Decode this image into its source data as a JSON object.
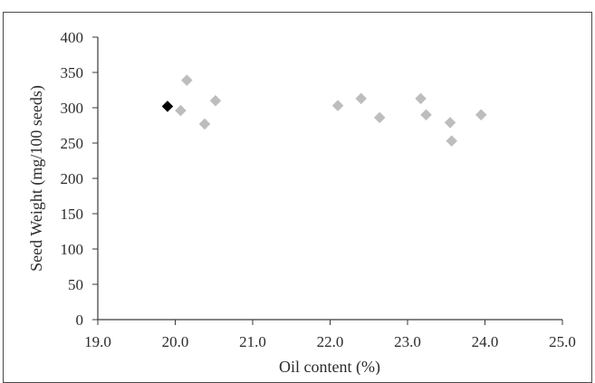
{
  "chart_data": {
    "type": "scatter",
    "title": "",
    "xlabel": "Oil content (%)",
    "ylabel": "Seed Weight (mg/100 seeds)",
    "xlim": [
      19.0,
      25.0
    ],
    "ylim": [
      0,
      400
    ],
    "xticks": [
      "19.0",
      "20.0",
      "21.0",
      "22.0",
      "23.0",
      "24.0",
      "25.0"
    ],
    "yticks": [
      "0",
      "50",
      "100",
      "150",
      "200",
      "250",
      "300",
      "350",
      "400"
    ],
    "grid": false,
    "legend": "none",
    "series": [
      {
        "color": "#bdbdbd",
        "marker": "diamond",
        "points": [
          {
            "x": 20.07,
            "y": 296
          },
          {
            "x": 20.15,
            "y": 339
          },
          {
            "x": 20.38,
            "y": 277
          },
          {
            "x": 20.52,
            "y": 310
          },
          {
            "x": 22.1,
            "y": 303
          },
          {
            "x": 22.4,
            "y": 313
          },
          {
            "x": 22.64,
            "y": 286
          },
          {
            "x": 23.17,
            "y": 313
          },
          {
            "x": 23.24,
            "y": 290
          },
          {
            "x": 23.55,
            "y": 279
          },
          {
            "x": 23.57,
            "y": 253
          },
          {
            "x": 23.95,
            "y": 290
          }
        ]
      },
      {
        "color": "#000000",
        "marker": "diamond",
        "points": [
          {
            "x": 19.9,
            "y": 302
          }
        ]
      }
    ]
  }
}
